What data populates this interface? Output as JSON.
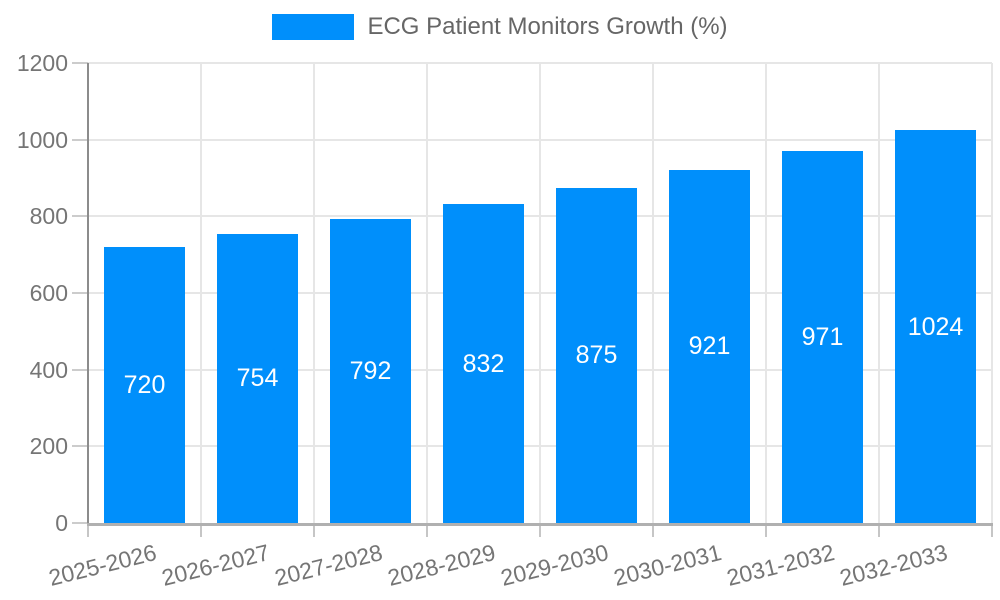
{
  "legend": {
    "label": "ECG Patient Monitors Growth (%)"
  },
  "chart_data": {
    "type": "bar",
    "title": "",
    "categories": [
      "2025-2026",
      "2026-2027",
      "2027-2028",
      "2028-2029",
      "2029-2030",
      "2030-2031",
      "2031-2032",
      "2032-2033"
    ],
    "values": [
      720,
      754,
      792,
      832,
      875,
      921,
      971,
      1024
    ],
    "series": [
      {
        "name": "ECG Patient Monitors Growth (%)",
        "values": [
          720,
          754,
          792,
          832,
          875,
          921,
          971,
          1024
        ]
      }
    ],
    "xlabel": "",
    "ylabel": "",
    "ylim": [
      0,
      1200
    ],
    "ytick_step": 200,
    "ytick_labels": [
      "0",
      "200",
      "400",
      "600",
      "800",
      "1000",
      "1200"
    ],
    "grid": true,
    "legend_position": "top",
    "bar_color": "#008FFB",
    "bar_label_color": "#ffffff",
    "axis_text_color": "#757575",
    "data_labels_visible": true
  }
}
